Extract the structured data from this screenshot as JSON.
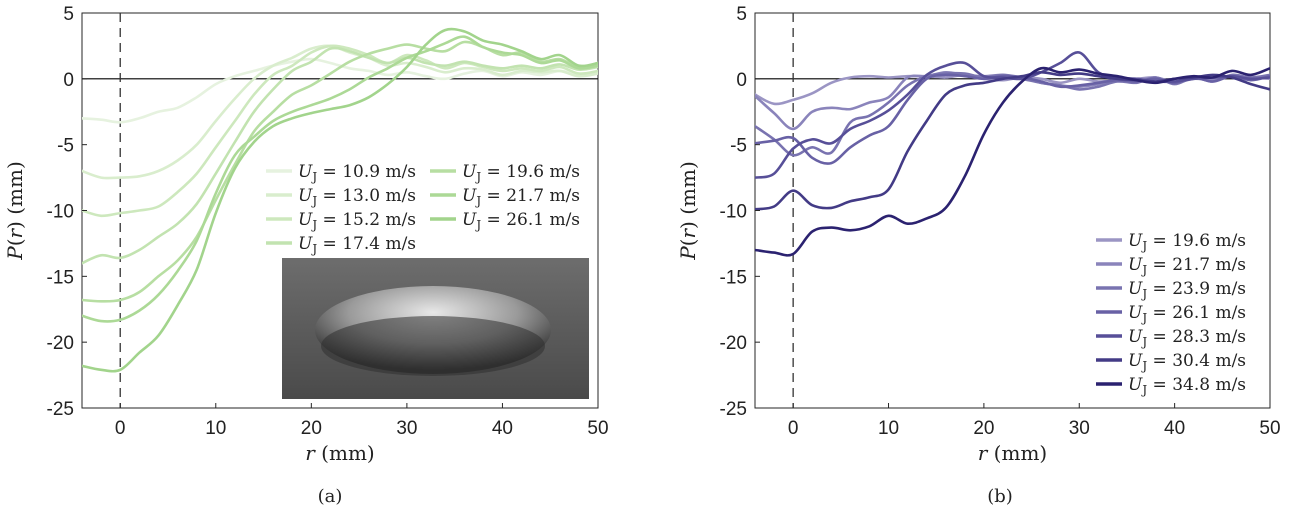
{
  "chart_data": [
    {
      "type": "line",
      "caption": "(a)",
      "xlabel": "r (mm)",
      "ylabel": "P(r) (mm)",
      "xlim": [
        -4,
        50
      ],
      "ylim": [
        -25,
        5
      ],
      "xticks": [
        "0",
        "10",
        "20",
        "30",
        "40",
        "50"
      ],
      "yticks": [
        "5",
        "0",
        "-5",
        "-10",
        "-15",
        "-20",
        "-25"
      ],
      "reference_lines": {
        "x": 0,
        "y": 0
      },
      "legend": {
        "placement": "center-right",
        "columns": 2
      },
      "inset_image": "crater-photo",
      "series": [
        {
          "name": "U_J = 10.9 m/s",
          "color": "#e6f2df",
          "x": [
            -4,
            -2,
            0,
            2,
            4,
            6,
            8,
            10,
            12,
            14,
            16,
            18,
            20,
            22,
            24,
            26,
            28,
            30,
            32,
            34,
            36,
            38,
            40,
            42,
            44,
            46,
            48,
            50
          ],
          "y": [
            -3,
            -3.1,
            -3.3,
            -3,
            -2.5,
            -2.2,
            -1.4,
            -0.4,
            0.2,
            0.6,
            1,
            1.3,
            1.5,
            1.2,
            0.8,
            0.6,
            0.3,
            0.5,
            0.2,
            0,
            0.4,
            0.6,
            0.2,
            0.5,
            0.3,
            0.6,
            0.4,
            0.5
          ]
        },
        {
          "name": "U_J = 13.0 m/s",
          "color": "#d9edcd",
          "x": [
            -4,
            -2,
            0,
            2,
            4,
            6,
            8,
            10,
            12,
            14,
            16,
            18,
            20,
            22,
            24,
            26,
            28,
            30,
            32,
            34,
            36,
            38,
            40,
            42,
            44,
            46,
            48,
            50
          ],
          "y": [
            -7,
            -7.5,
            -7.5,
            -7.4,
            -7,
            -6.2,
            -5,
            -3.2,
            -1.5,
            0,
            1,
            1.6,
            2.3,
            2.5,
            2,
            1.6,
            1,
            1.2,
            0.9,
            0.5,
            0.8,
            0.7,
            0.3,
            0.6,
            0.5,
            0.6,
            0.2,
            0.4
          ]
        },
        {
          "name": "U_J = 15.2 m/s",
          "color": "#cde8bd",
          "x": [
            -4,
            -2,
            0,
            2,
            4,
            6,
            8,
            10,
            12,
            14,
            16,
            18,
            20,
            22,
            24,
            26,
            28,
            30,
            32,
            34,
            36,
            38,
            40,
            42,
            44,
            46,
            48,
            50
          ],
          "y": [
            -10,
            -10.4,
            -10.2,
            -10,
            -9.7,
            -8.6,
            -7.2,
            -5.2,
            -3.2,
            -1.2,
            0.3,
            1,
            2,
            2.5,
            2.3,
            1.8,
            1.2,
            1.8,
            1.4,
            0.8,
            1.2,
            0.9,
            0.6,
            0.8,
            0.6,
            0.9,
            0.4,
            0.6
          ]
        },
        {
          "name": "U_J = 17.4 m/s",
          "color": "#c2e3b0",
          "x": [
            -4,
            -2,
            0,
            2,
            4,
            6,
            8,
            10,
            12,
            14,
            16,
            18,
            20,
            22,
            24,
            26,
            28,
            30,
            32,
            34,
            36,
            38,
            40,
            42,
            44,
            46,
            48,
            50
          ],
          "y": [
            -14,
            -13.4,
            -13.6,
            -13,
            -12,
            -11,
            -9.5,
            -7.2,
            -4.8,
            -2.5,
            -0.8,
            0.6,
            1.3,
            2.3,
            2.1,
            1.6,
            1.2,
            1.6,
            1.2,
            1,
            1.3,
            1,
            0.8,
            1,
            0.8,
            1.1,
            0.7,
            0.9
          ]
        },
        {
          "name": "U_J = 19.6 m/s",
          "color": "#b7dea2",
          "x": [
            -4,
            -2,
            0,
            2,
            4,
            6,
            8,
            10,
            12,
            14,
            16,
            18,
            20,
            22,
            24,
            26,
            28,
            30,
            32,
            34,
            36,
            38,
            40,
            42,
            44,
            46,
            48,
            50
          ],
          "y": [
            -16.8,
            -16.9,
            -16.8,
            -16.2,
            -15,
            -13.8,
            -12,
            -9.2,
            -6.5,
            -4,
            -2.5,
            -1.2,
            -0.5,
            0.4,
            1.3,
            1.9,
            2.3,
            2.6,
            2.3,
            2.1,
            2.8,
            2.4,
            1.8,
            2,
            1.3,
            1.5,
            0.9,
            1.2
          ]
        },
        {
          "name": "U_J = 21.7 m/s",
          "color": "#acd996",
          "x": [
            -4,
            -2,
            0,
            2,
            4,
            6,
            8,
            10,
            12,
            14,
            16,
            18,
            20,
            22,
            24,
            26,
            28,
            30,
            32,
            34,
            36,
            38,
            40,
            42,
            44,
            46,
            48,
            50
          ],
          "y": [
            -18,
            -18.4,
            -18.3,
            -17.6,
            -16.4,
            -14.6,
            -12.3,
            -8.7,
            -5.8,
            -4.4,
            -3.2,
            -2.5,
            -2,
            -1.5,
            -0.8,
            0.1,
            0.8,
            1.6,
            2.1,
            2.7,
            3.2,
            2.4,
            2,
            1.8,
            1.2,
            1.4,
            0.8,
            1
          ]
        },
        {
          "name": "U_J = 26.1 m/s",
          "color": "#a2d48c",
          "x": [
            -4,
            -2,
            0,
            2,
            4,
            6,
            8,
            10,
            12,
            14,
            16,
            18,
            20,
            22,
            24,
            26,
            28,
            30,
            32,
            34,
            36,
            38,
            40,
            42,
            44,
            46,
            48,
            50
          ],
          "y": [
            -21.8,
            -22.1,
            -22.1,
            -20.8,
            -19.5,
            -17.2,
            -14.5,
            -10.2,
            -6.8,
            -4.8,
            -3.6,
            -3,
            -2.6,
            -2.3,
            -2,
            -1.4,
            -0.4,
            0.9,
            2.6,
            3.7,
            3.6,
            2.9,
            2.6,
            2.1,
            1.5,
            1.8,
            1,
            1.2
          ]
        }
      ]
    },
    {
      "type": "line",
      "caption": "(b)",
      "xlabel": "r (mm)",
      "ylabel": "P(r) (mm)",
      "xlim": [
        -4,
        50
      ],
      "ylim": [
        -25,
        5
      ],
      "xticks": [
        "0",
        "10",
        "20",
        "30",
        "40",
        "50"
      ],
      "yticks": [
        "5",
        "0",
        "-5",
        "-10",
        "-15",
        "-20",
        "-25"
      ],
      "reference_lines": {
        "x": 0,
        "y": 0
      },
      "legend": {
        "placement": "bottom-right",
        "columns": 1
      },
      "series": [
        {
          "name": "U_J = 19.6 m/s",
          "color": "#9b95c4",
          "x": [
            -4,
            -2,
            0,
            2,
            4,
            6,
            8,
            10,
            12,
            14,
            16,
            18,
            20,
            22,
            24,
            26,
            28,
            30,
            32,
            34,
            36,
            38,
            40,
            42,
            44,
            46,
            48,
            50
          ],
          "y": [
            -1.2,
            -1.9,
            -1.6,
            -1.1,
            -0.3,
            0.1,
            0.2,
            0.1,
            0.2,
            0.2,
            0.1,
            0.3,
            0,
            -0.1,
            0.1,
            0,
            -0.3,
            0,
            -0.2,
            -0.1,
            0,
            0.1,
            -0.2,
            0.1,
            0,
            0.2,
            0.1,
            0
          ]
        },
        {
          "name": "U_J = 21.7 m/s",
          "color": "#8a84bb",
          "x": [
            -4,
            -2,
            0,
            2,
            4,
            6,
            8,
            10,
            12,
            14,
            16,
            18,
            20,
            22,
            24,
            26,
            28,
            30,
            32,
            34,
            36,
            38,
            40,
            42,
            44,
            46,
            48,
            50
          ],
          "y": [
            -1.3,
            -2.6,
            -3.8,
            -2.5,
            -2.2,
            -2.3,
            -1.8,
            -1.4,
            0.1,
            0.2,
            0.5,
            0.3,
            0.2,
            0.3,
            0.1,
            -0.3,
            -0.5,
            -0.6,
            -0.4,
            -0.1,
            -0.2,
            0.1,
            -0.3,
            0,
            -0.1,
            0.2,
            0,
            0.2
          ]
        },
        {
          "name": "U_J = 23.9 m/s",
          "color": "#7973b0",
          "x": [
            -4,
            -2,
            0,
            2,
            4,
            6,
            8,
            10,
            12,
            14,
            16,
            18,
            20,
            22,
            24,
            26,
            28,
            30,
            32,
            34,
            36,
            38,
            40,
            42,
            44,
            46,
            48,
            50
          ],
          "y": [
            -3.6,
            -4.6,
            -5.8,
            -5.2,
            -5.6,
            -3.3,
            -2.8,
            -1.8,
            -0.5,
            0.2,
            0.4,
            0.4,
            0.1,
            0.3,
            0,
            -0.3,
            -0.5,
            -0.8,
            -0.6,
            -0.2,
            -0.3,
            0.1,
            -0.4,
            0.1,
            -0.2,
            0.3,
            0.1,
            0.3
          ]
        },
        {
          "name": "U_J = 26.1 m/s",
          "color": "#6861a5",
          "x": [
            -4,
            -2,
            0,
            2,
            4,
            6,
            8,
            10,
            12,
            14,
            16,
            18,
            20,
            22,
            24,
            26,
            28,
            30,
            32,
            34,
            36,
            38,
            40,
            42,
            44,
            46,
            48,
            50
          ],
          "y": [
            -4.9,
            -4.7,
            -4.5,
            -6,
            -6.4,
            -5.2,
            -4.3,
            -3.6,
            -1.6,
            0,
            0.3,
            0.2,
            0,
            0.2,
            0.1,
            -0.2,
            -0.6,
            -0.5,
            -0.3,
            -0.1,
            -0.2,
            0,
            -0.3,
            0.1,
            -0.2,
            0.2,
            -0.1,
            0.2
          ]
        },
        {
          "name": "U_J = 28.3 m/s",
          "color": "#574f98",
          "x": [
            -4,
            -2,
            0,
            2,
            4,
            6,
            8,
            10,
            12,
            14,
            16,
            18,
            20,
            22,
            24,
            26,
            28,
            30,
            32,
            34,
            36,
            38,
            40,
            42,
            44,
            46,
            48,
            50
          ],
          "y": [
            -7.5,
            -7.2,
            -5.3,
            -4.6,
            -4.9,
            -3.8,
            -3.2,
            -2.4,
            -1.2,
            0.3,
            1,
            1.2,
            0.2,
            0.1,
            0,
            0.5,
            1.2,
            2,
            0.5,
            0.1,
            0,
            -0.2,
            -0.2,
            0,
            0.1,
            0.2,
            0,
            0.1
          ]
        },
        {
          "name": "U_J = 30.4 m/s",
          "color": "#433b86",
          "x": [
            -4,
            -2,
            0,
            2,
            4,
            6,
            8,
            10,
            12,
            14,
            16,
            18,
            20,
            22,
            24,
            26,
            28,
            30,
            32,
            34,
            36,
            38,
            40,
            42,
            44,
            46,
            48,
            50
          ],
          "y": [
            -9.9,
            -9.7,
            -8.5,
            -9.6,
            -9.8,
            -9.3,
            -9,
            -8.4,
            -5.5,
            -3.2,
            -1.2,
            -0.5,
            -0.3,
            0,
            0.2,
            0.5,
            0.3,
            0.4,
            0.2,
            0,
            -0.1,
            -0.2,
            0,
            0.1,
            0.3,
            0.1,
            -0.4,
            -0.8
          ]
        },
        {
          "name": "U_J = 34.8 m/s",
          "color": "#2b2270",
          "x": [
            -4,
            -2,
            0,
            2,
            4,
            6,
            8,
            10,
            12,
            14,
            16,
            18,
            20,
            22,
            24,
            26,
            28,
            30,
            32,
            34,
            36,
            38,
            40,
            42,
            44,
            46,
            48,
            50
          ],
          "y": [
            -13,
            -13.2,
            -13.3,
            -11.6,
            -11.3,
            -11.5,
            -11.2,
            -10.4,
            -11,
            -10.6,
            -9.8,
            -7.4,
            -4.2,
            -1.8,
            -0.2,
            0.8,
            0.5,
            0.7,
            0.4,
            0.2,
            -0.1,
            -0.3,
            0,
            0.2,
            0.1,
            0.6,
            0.3,
            0.8
          ]
        }
      ]
    }
  ]
}
